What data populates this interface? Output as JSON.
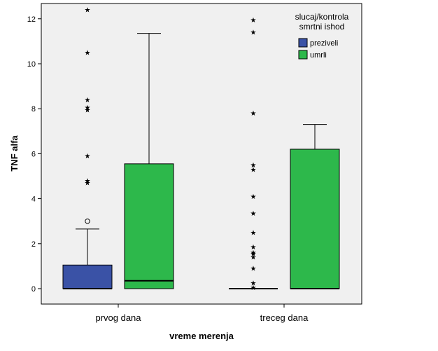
{
  "chart_data": {
    "type": "boxplot",
    "xlabel": "vreme merenja",
    "ylabel": "TNF alfa",
    "ylim": [
      -0.6,
      12.6
    ],
    "yticks": [
      0,
      2,
      4,
      6,
      8,
      10,
      12
    ],
    "categories": [
      "prvog dana",
      "treceg dana"
    ],
    "legend": {
      "title_lines": [
        "slucaj/kontrola",
        "smrtni ishod"
      ],
      "placement": "top-right"
    },
    "series": [
      {
        "name": "preziveli",
        "color": "#3a52a6",
        "boxes": [
          {
            "category": "prvog dana",
            "min": 0.0,
            "q1": 0.0,
            "median": 0.0,
            "q3": 1.05,
            "max": 2.65,
            "outliers_circle": [
              3.0
            ],
            "outliers_star": [
              4.7,
              4.8,
              5.9,
              7.95,
              8.05,
              8.4,
              10.5,
              12.4
            ]
          },
          {
            "category": "treceg dana",
            "min": 0.0,
            "q1": 0.0,
            "median": 0.0,
            "q3": 0.0,
            "max": 0.0,
            "outliers_circle": [],
            "outliers_star": [
              0.05,
              0.25,
              0.9,
              1.4,
              1.55,
              1.6,
              1.85,
              2.5,
              3.35,
              4.1,
              5.3,
              5.5,
              7.8,
              11.4,
              11.95
            ]
          }
        ]
      },
      {
        "name": "umrli",
        "color": "#2db84b",
        "boxes": [
          {
            "category": "prvog dana",
            "min": 0.0,
            "q1": 0.0,
            "median": 0.35,
            "q3": 5.55,
            "max": 11.35,
            "outliers_circle": [],
            "outliers_star": []
          },
          {
            "category": "treceg dana",
            "min": 0.0,
            "q1": 0.0,
            "median": 0.0,
            "q3": 6.2,
            "max": 7.3,
            "outliers_circle": [],
            "outliers_star": []
          }
        ]
      }
    ]
  }
}
